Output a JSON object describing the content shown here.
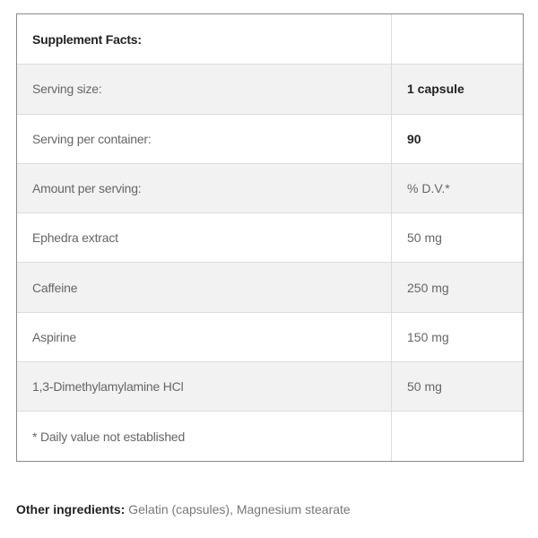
{
  "table": {
    "header": "Supplement Facts:",
    "rows": [
      {
        "label": "Serving size:",
        "value": "1 capsule",
        "value_bold": true
      },
      {
        "label": "Serving per container:",
        "value": "90",
        "value_bold": true
      },
      {
        "label": "Amount per serving:",
        "value": "% D.V.*"
      },
      {
        "label": "Ephedra extract",
        "value": "50 mg"
      },
      {
        "label": "Caffeine",
        "value": "250 mg"
      },
      {
        "label": "Aspirine",
        "value": "150 mg"
      },
      {
        "label": "1,3-Dimethylamylamine HCl",
        "value": "50 mg"
      },
      {
        "label": "* Daily value not established",
        "value": ""
      }
    ]
  },
  "other_ingredients": {
    "label": "Other ingredients:",
    "text": "Gelatin (capsules), Magnesium stearate"
  }
}
